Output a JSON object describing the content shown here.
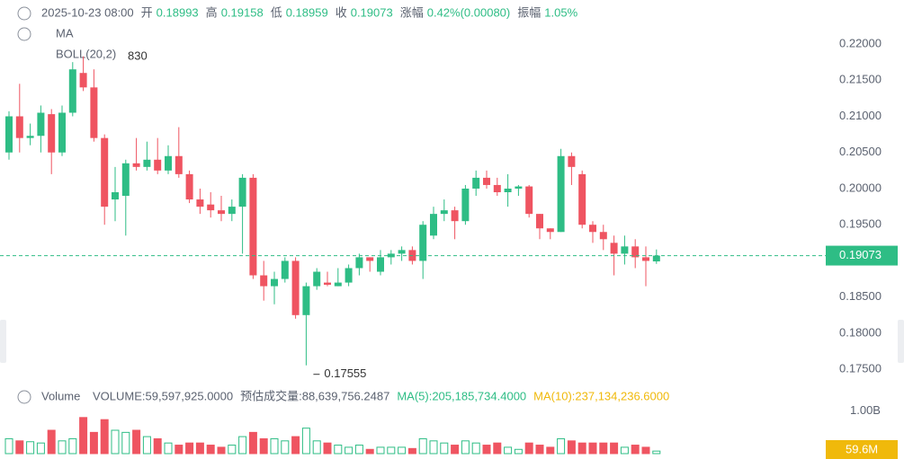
{
  "header": {
    "datetime": "2025-10-23 08:00",
    "fields": [
      {
        "label": "开",
        "value": "0.18993"
      },
      {
        "label": "高",
        "value": "0.19158"
      },
      {
        "label": "低",
        "value": "0.18959"
      },
      {
        "label": "收",
        "value": "0.19073"
      },
      {
        "label": "涨幅",
        "value": "0.42%(0.00080)"
      },
      {
        "label": "振幅",
        "value": "1.05%"
      }
    ]
  },
  "indicators": {
    "ma": "MA",
    "boll": "BOLL(20,2)",
    "high_mark": "830"
  },
  "chart_data": [
    {
      "type": "candlestick",
      "up_color": "#2ebd85",
      "down_color": "#ef5461",
      "open": [
        0.205,
        0.21,
        0.207,
        0.2073,
        0.2103,
        0.205,
        0.2105,
        0.216,
        0.214,
        0.207,
        0.1985,
        0.199,
        0.2035,
        0.203,
        0.204,
        0.2025,
        0.2045,
        0.202,
        0.1985,
        0.1978,
        0.197,
        0.1965,
        0.1975,
        0.2015,
        0.188,
        0.1865,
        0.1875,
        0.19,
        0.1825,
        0.1865,
        0.187,
        0.1865,
        0.187,
        0.189,
        0.1905,
        0.1885,
        0.1905,
        0.191,
        0.1915,
        0.19,
        0.1935,
        0.1965,
        0.197,
        0.1955,
        0.2,
        0.2015,
        0.2005,
        0.1995,
        0.2,
        0.2003,
        0.1965,
        0.1945,
        0.194,
        0.2045,
        0.202,
        0.195,
        0.194,
        0.1925,
        0.191,
        0.192,
        0.1905,
        0.18993
      ],
      "high": [
        0.2107,
        0.2145,
        0.209,
        0.2115,
        0.211,
        0.2115,
        0.2175,
        0.2183,
        0.2165,
        0.2075,
        0.203,
        0.204,
        0.207,
        0.2065,
        0.207,
        0.206,
        0.2085,
        0.2025,
        0.2,
        0.1995,
        0.199,
        0.1985,
        0.202,
        0.202,
        0.19,
        0.1885,
        0.1905,
        0.1905,
        0.187,
        0.189,
        0.1885,
        0.189,
        0.1895,
        0.191,
        0.1905,
        0.1915,
        0.1915,
        0.192,
        0.192,
        0.1955,
        0.1975,
        0.1985,
        0.1975,
        0.2005,
        0.2025,
        0.2025,
        0.2015,
        0.202,
        0.2005,
        0.2005,
        0.1965,
        0.1945,
        0.2055,
        0.205,
        0.2025,
        0.1955,
        0.195,
        0.1935,
        0.1935,
        0.193,
        0.192,
        0.19158
      ],
      "low": [
        0.204,
        0.205,
        0.206,
        0.205,
        0.202,
        0.2045,
        0.21,
        0.2135,
        0.2065,
        0.195,
        0.1955,
        0.1935,
        0.2025,
        0.2025,
        0.202,
        0.202,
        0.2015,
        0.198,
        0.1965,
        0.196,
        0.1955,
        0.1955,
        0.191,
        0.1875,
        0.1845,
        0.184,
        0.187,
        0.182,
        0.17555,
        0.186,
        0.1865,
        0.1865,
        0.1865,
        0.188,
        0.1885,
        0.188,
        0.1895,
        0.19,
        0.1895,
        0.1875,
        0.193,
        0.1955,
        0.193,
        0.195,
        0.199,
        0.2,
        0.199,
        0.1975,
        0.199,
        0.196,
        0.193,
        0.193,
        0.194,
        0.2005,
        0.1945,
        0.1925,
        0.1915,
        0.188,
        0.1895,
        0.189,
        0.1865,
        0.18959
      ],
      "close": [
        0.21,
        0.207,
        0.2073,
        0.2105,
        0.205,
        0.2105,
        0.2165,
        0.214,
        0.207,
        0.1975,
        0.1995,
        0.2035,
        0.203,
        0.204,
        0.2025,
        0.2045,
        0.202,
        0.1985,
        0.1975,
        0.197,
        0.1965,
        0.1975,
        0.2015,
        0.188,
        0.1865,
        0.1875,
        0.19,
        0.1825,
        0.1865,
        0.1885,
        0.1867,
        0.187,
        0.189,
        0.1905,
        0.19,
        0.1905,
        0.191,
        0.1915,
        0.19,
        0.195,
        0.1965,
        0.197,
        0.1955,
        0.2,
        0.2015,
        0.2005,
        0.1995,
        0.2,
        0.2003,
        0.1965,
        0.1945,
        0.194,
        0.2045,
        0.203,
        0.195,
        0.194,
        0.193,
        0.191,
        0.192,
        0.1905,
        0.19,
        0.19073
      ],
      "ylim": [
        0.1739,
        0.2251
      ],
      "yticks": [
        {
          "value": 0.22,
          "label": "0.22000"
        },
        {
          "value": 0.215,
          "label": "0.21500"
        },
        {
          "value": 0.21,
          "label": "0.21000"
        },
        {
          "value": 0.205,
          "label": "0.20500"
        },
        {
          "value": 0.2,
          "label": "0.20000"
        },
        {
          "value": 0.195,
          "label": "0.19500"
        },
        {
          "value": 0.185,
          "label": "0.18500"
        },
        {
          "value": 0.18,
          "label": "0.18000"
        },
        {
          "value": 0.175,
          "label": "0.17500"
        }
      ],
      "last_price": 0.19073,
      "low_mark": 0.17555
    },
    {
      "type": "bar",
      "title": "Volume",
      "legend": [
        "VOLUME:59,597,925.0000",
        "预估成交量:88,639,756.2487",
        "MA(5):205,185,734.4000",
        "MA(10):237,134,236.6000"
      ],
      "values": [
        350000000,
        300000000,
        280000000,
        250000000,
        550000000,
        300000000,
        350000000,
        850000000,
        500000000,
        800000000,
        550000000,
        500000000,
        550000000,
        400000000,
        350000000,
        250000000,
        200000000,
        250000000,
        250000000,
        200000000,
        150000000,
        200000000,
        400000000,
        500000000,
        350000000,
        350000000,
        300000000,
        400000000,
        600000000,
        300000000,
        250000000,
        200000000,
        150000000,
        200000000,
        100000000,
        150000000,
        150000000,
        150000000,
        120000000,
        350000000,
        300000000,
        250000000,
        200000000,
        300000000,
        250000000,
        200000000,
        250000000,
        150000000,
        100000000,
        250000000,
        200000000,
        150000000,
        350000000,
        300000000,
        250000000,
        250000000,
        250000000,
        250000000,
        150000000,
        200000000,
        150000000,
        59597925
      ],
      "last_label": "59.6M",
      "ylim": [
        0,
        1100000000
      ],
      "yticks": [
        {
          "value": 1000000000,
          "label": "1.00B"
        }
      ]
    }
  ]
}
